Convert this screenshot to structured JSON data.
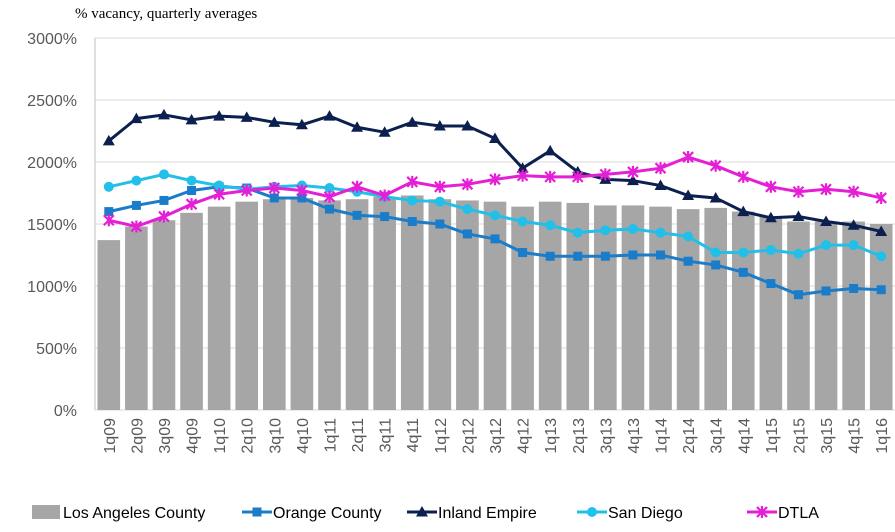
{
  "chart_data": {
    "type": "bar_line",
    "y_label": "% vacancy, quarterly averages",
    "categories": [
      "1q09",
      "2q09",
      "3q09",
      "4q09",
      "1q10",
      "2q10",
      "3q10",
      "4q10",
      "1q11",
      "2q11",
      "3q11",
      "4q11",
      "1q12",
      "2q12",
      "3q12",
      "4q12",
      "1q13",
      "2q13",
      "3q13",
      "4q13",
      "1q14",
      "2q14",
      "3q14",
      "4q14",
      "1q15",
      "2q15",
      "3q15",
      "4q15",
      "1q16"
    ],
    "ylim": [
      0,
      3000
    ],
    "yticks": [
      {
        "value": 0,
        "label": "0%"
      },
      {
        "value": 500,
        "label": "500%"
      },
      {
        "value": 1000,
        "label": "1000%"
      },
      {
        "value": 1500,
        "label": "1500%"
      },
      {
        "value": 2000,
        "label": "2000%"
      },
      {
        "value": 2500,
        "label": "2500%"
      },
      {
        "value": 3000,
        "label": "3000%"
      }
    ],
    "grid": true,
    "legend": "bottom",
    "series": [
      {
        "name": "Los Angeles County",
        "kind": "bar",
        "color": "#a6a6a6",
        "values": [
          1370,
          1480,
          1530,
          1590,
          1640,
          1680,
          1700,
          1710,
          1690,
          1700,
          1720,
          1730,
          1700,
          1690,
          1680,
          1640,
          1680,
          1670,
          1650,
          1650,
          1640,
          1620,
          1630,
          1600,
          1560,
          1520,
          1520,
          1520,
          1500
        ]
      },
      {
        "name": "Orange County",
        "kind": "line",
        "marker": "square",
        "color": "#1b7cc9",
        "values": [
          1600,
          1650,
          1690,
          1770,
          1800,
          1790,
          1710,
          1710,
          1620,
          1570,
          1560,
          1520,
          1500,
          1420,
          1380,
          1270,
          1240,
          1240,
          1240,
          1250,
          1250,
          1200,
          1170,
          1110,
          1020,
          930,
          960,
          980,
          970
        ]
      },
      {
        "name": "Inland Empire",
        "kind": "line",
        "marker": "triangle",
        "color": "#0c2050",
        "values": [
          2170,
          2350,
          2380,
          2340,
          2370,
          2360,
          2320,
          2300,
          2370,
          2280,
          2240,
          2320,
          2290,
          2290,
          2190,
          1950,
          2090,
          1920,
          1860,
          1850,
          1810,
          1730,
          1710,
          1600,
          1550,
          1560,
          1520,
          1490,
          1440
        ]
      },
      {
        "name": "San Diego",
        "kind": "line",
        "marker": "circle",
        "color": "#22c0e8",
        "values": [
          1800,
          1850,
          1900,
          1850,
          1810,
          1780,
          1800,
          1810,
          1790,
          1760,
          1720,
          1690,
          1680,
          1620,
          1570,
          1520,
          1490,
          1430,
          1450,
          1460,
          1430,
          1400,
          1270,
          1270,
          1290,
          1260,
          1330,
          1330,
          1240
        ]
      },
      {
        "name": "DTLA",
        "kind": "line",
        "marker": "star",
        "color": "#e51fd6",
        "values": [
          1530,
          1480,
          1560,
          1660,
          1740,
          1770,
          1790,
          1770,
          1720,
          1800,
          1730,
          1840,
          1800,
          1820,
          1860,
          1890,
          1880,
          1880,
          1900,
          1920,
          1950,
          2040,
          1970,
          1880,
          1800,
          1760,
          1780,
          1760,
          1710
        ]
      }
    ]
  }
}
